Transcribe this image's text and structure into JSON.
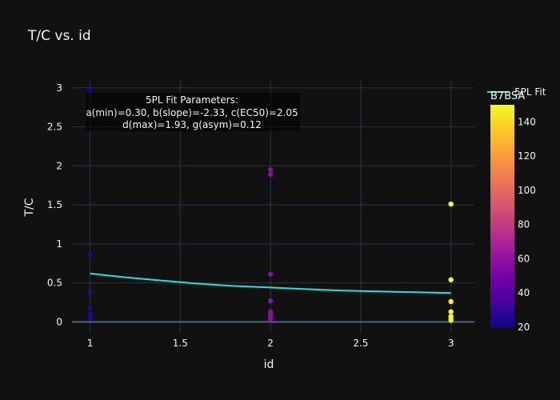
{
  "chart_data": {
    "type": "scatter",
    "title": "T/C vs. id",
    "xlabel": "id",
    "ylabel": "T/C",
    "xlim": [
      0.9,
      3.13
    ],
    "ylim": [
      -0.14,
      3.1
    ],
    "x_ticks": [
      1,
      1.5,
      2,
      2.5,
      3
    ],
    "y_ticks": [
      0,
      0.5,
      1,
      1.5,
      2,
      2.5,
      3
    ],
    "x_tick_labels": [
      "1",
      "1.5",
      "2",
      "2.5",
      "3"
    ],
    "y_tick_labels": [
      "0",
      "0.5",
      "1",
      "1.5",
      "2",
      "2.5",
      "3"
    ],
    "grid": true,
    "points": [
      {
        "x": 1,
        "y": 2.97,
        "c": 22
      },
      {
        "x": 1,
        "y": 0.87,
        "c": 24
      },
      {
        "x": 1,
        "y": 0.38,
        "c": 25
      },
      {
        "x": 1,
        "y": 0.17,
        "c": 26
      },
      {
        "x": 1,
        "y": 0.09,
        "c": 26
      },
      {
        "x": 1,
        "y": 0.04,
        "c": 27
      },
      {
        "x": 2,
        "y": 1.95,
        "c": 58
      },
      {
        "x": 2,
        "y": 1.89,
        "c": 58
      },
      {
        "x": 2,
        "y": 0.61,
        "c": 58
      },
      {
        "x": 2,
        "y": 0.27,
        "c": 58
      },
      {
        "x": 2,
        "y": 0.13,
        "c": 58
      },
      {
        "x": 2,
        "y": 0.11,
        "c": 58
      },
      {
        "x": 2,
        "y": 0.06,
        "c": 58
      },
      {
        "x": 2,
        "y": 0.03,
        "c": 58
      },
      {
        "x": 3,
        "y": 1.51,
        "c": 150
      },
      {
        "x": 3,
        "y": 0.54,
        "c": 150
      },
      {
        "x": 3,
        "y": 0.26,
        "c": 150
      },
      {
        "x": 3,
        "y": 0.13,
        "c": 150
      },
      {
        "x": 3,
        "y": 0.07,
        "c": 150
      },
      {
        "x": 3,
        "y": 0.04,
        "c": 150
      },
      {
        "x": 3,
        "y": 0.02,
        "c": 150
      }
    ],
    "fit_series": {
      "name": "5PL Fit",
      "color": "#22e0e8",
      "x": [
        1,
        1.2,
        1.4,
        1.6,
        1.8,
        2,
        2.2,
        2.4,
        2.6,
        2.8,
        3
      ],
      "y": [
        0.62,
        0.57,
        0.53,
        0.49,
        0.46,
        0.44,
        0.42,
        0.4,
        0.39,
        0.38,
        0.37
      ]
    },
    "annotation": [
      "5PL Fit Parameters:",
      "a(min)=0.30, b(slope)=-2.33, c(EC50)=2.05",
      "d(max)=1.93, g(asym)=0.12"
    ],
    "colorbar": {
      "title": "B7BSA",
      "min": 20,
      "max": 150,
      "ticks": [
        20,
        40,
        60,
        80,
        100,
        120,
        140
      ],
      "tick_labels": [
        "20",
        "40",
        "60",
        "80",
        "100",
        "120",
        "140"
      ],
      "colorscale": [
        "#0d0887",
        "#46039f",
        "#7201a8",
        "#9c179e",
        "#bd3786",
        "#d8576b",
        "#ed7953",
        "#fb9f3a",
        "#fdca26",
        "#f0f921"
      ]
    },
    "legend_position": "top-right"
  }
}
